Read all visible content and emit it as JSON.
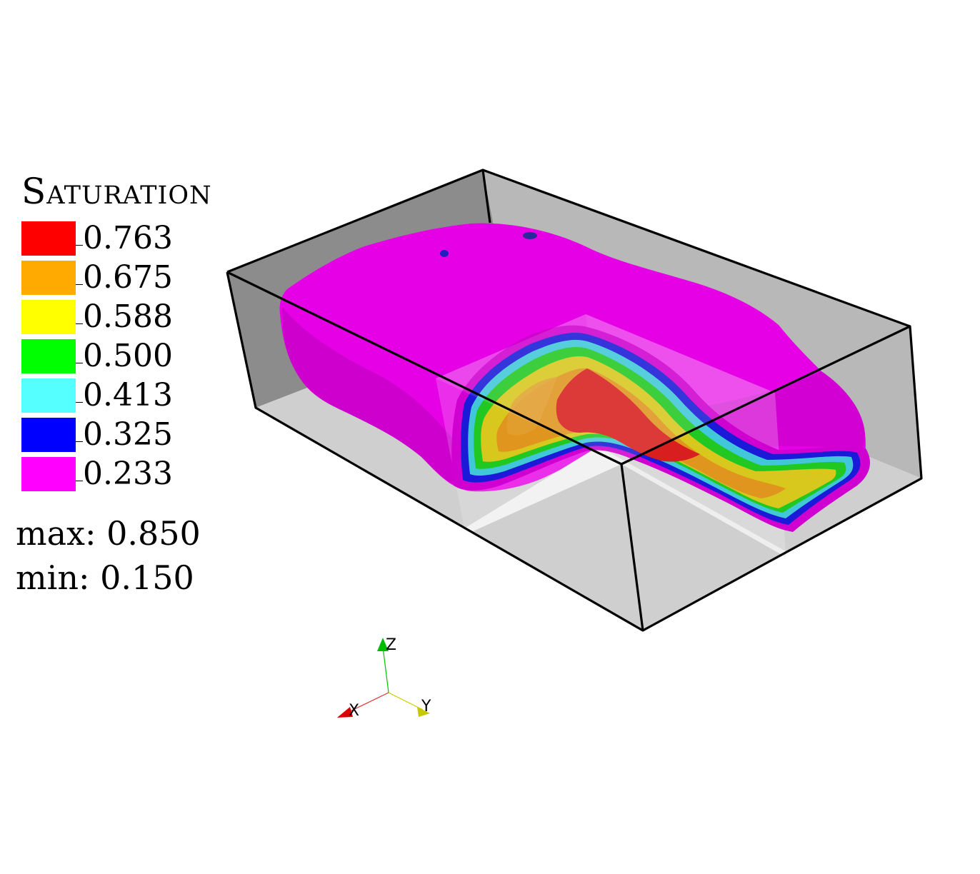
{
  "legend": {
    "title": "Saturation",
    "entries": [
      {
        "value": "0.763",
        "color": "#ff0000"
      },
      {
        "value": "0.675",
        "color": "#ffaa00"
      },
      {
        "value": "0.588",
        "color": "#ffff00"
      },
      {
        "value": "0.500",
        "color": "#00ff00"
      },
      {
        "value": "0.413",
        "color": "#55ffff"
      },
      {
        "value": "0.325",
        "color": "#0000ff"
      },
      {
        "value": "0.233",
        "color": "#ff00ff"
      }
    ]
  },
  "stats": {
    "max": "max: 0.850",
    "min": "min: 0.150"
  },
  "axes": {
    "x": "X",
    "y": "Y",
    "z": "Z",
    "x_color": "#dd0000",
    "y_color": "#cccc00",
    "z_color": "#00cc00"
  }
}
